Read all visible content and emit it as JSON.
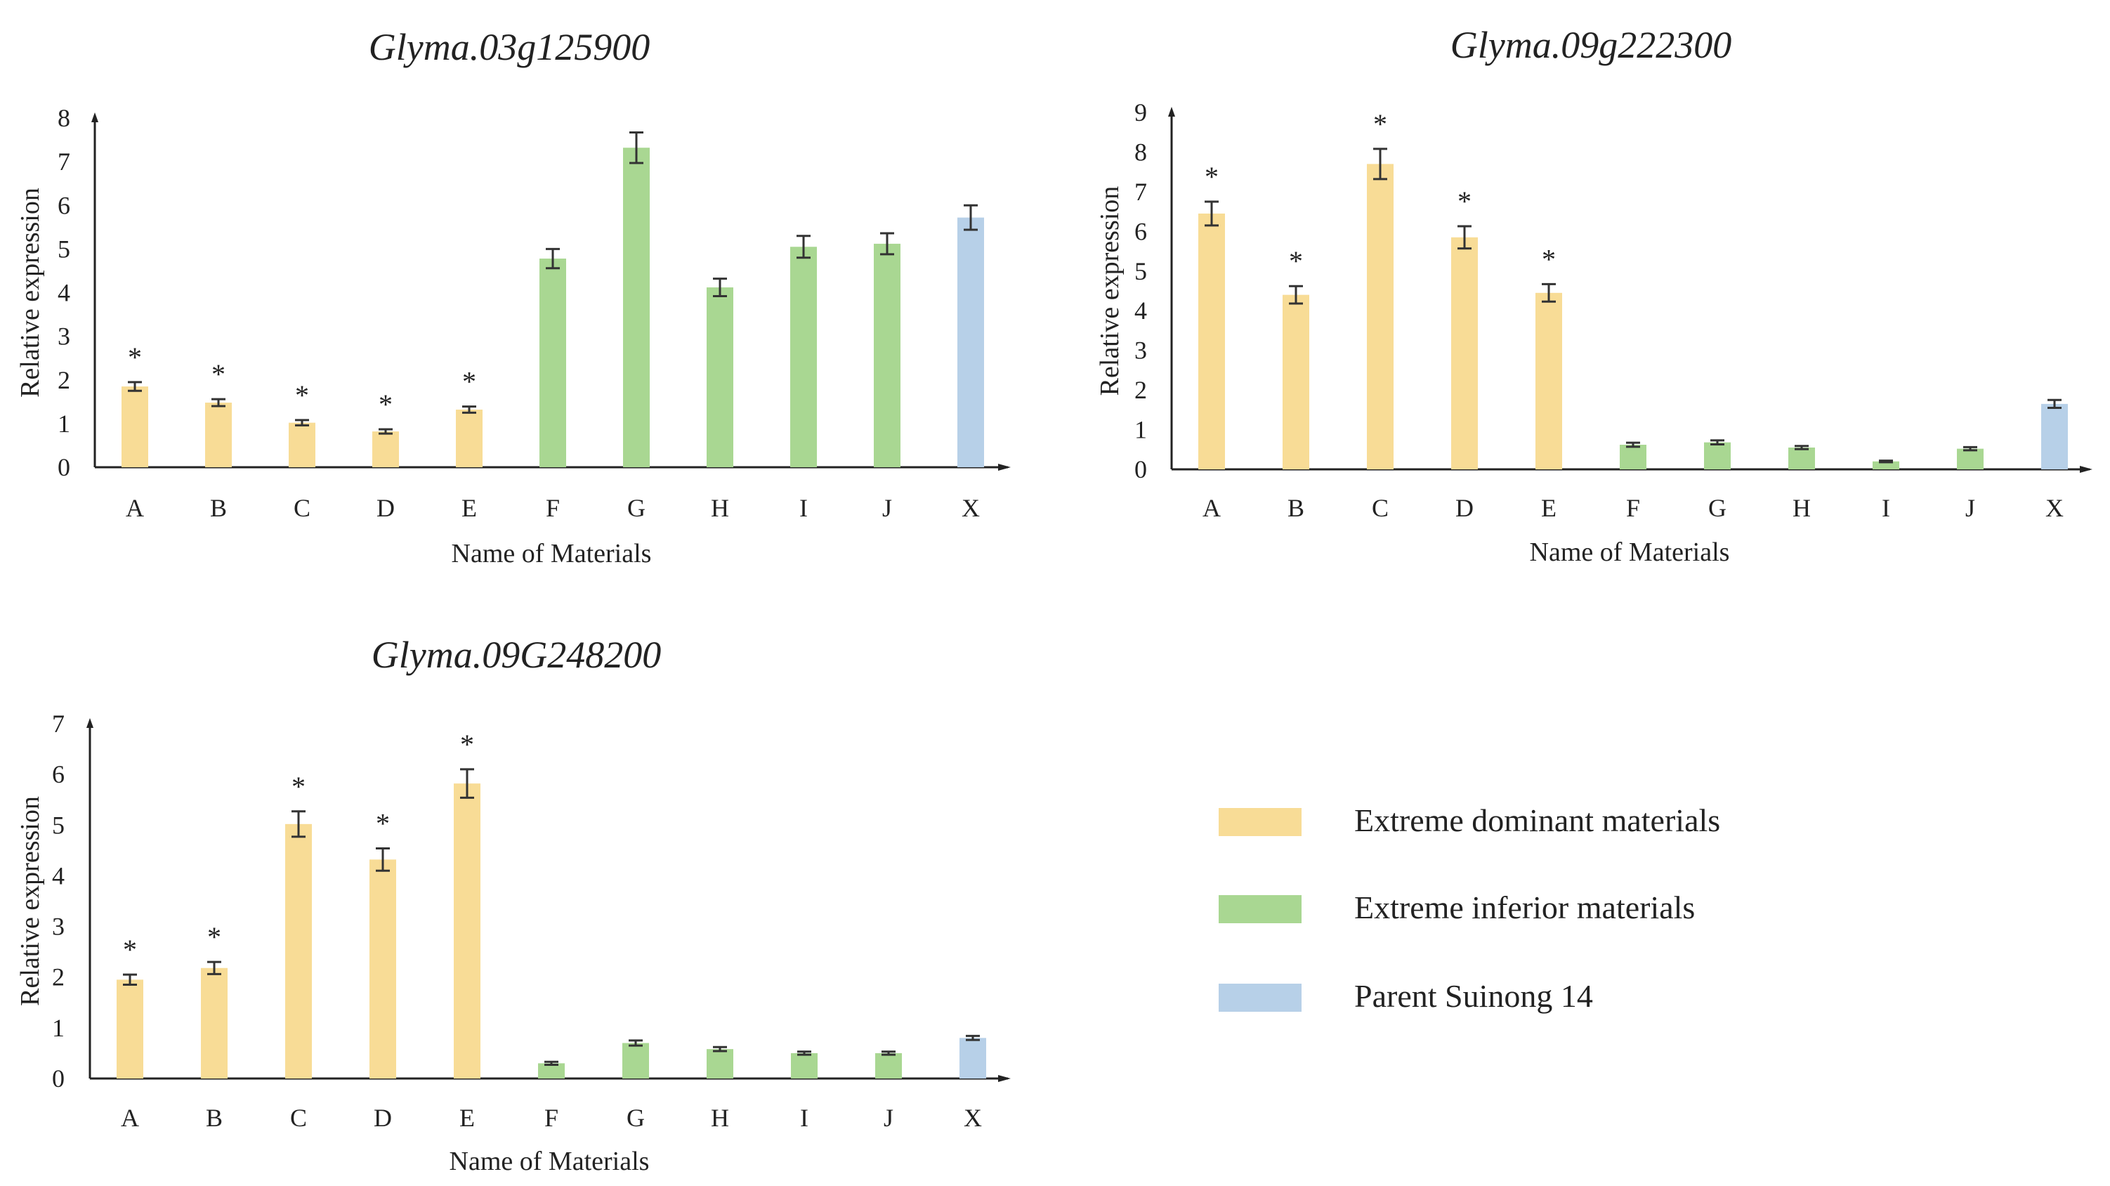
{
  "colors": {
    "dominant": "#f8dc96",
    "inferior": "#a9d792",
    "parent": "#b7d0e8",
    "axis": "#222222",
    "error_bar": "#333333"
  },
  "legend": [
    {
      "label": "Extreme dominant materials",
      "color": "#f8dc96"
    },
    {
      "label": "Extreme inferior materials",
      "color": "#a9d792"
    },
    {
      "label": "Parent Suinong 14",
      "color": "#b7d0e8"
    }
  ],
  "chart_data": [
    {
      "type": "bar",
      "title": "Glyma.03g125900",
      "xlabel": "Name of Materials",
      "ylabel": "Relative expression",
      "ylim": [
        0,
        8
      ],
      "yticks": [
        0,
        1,
        2,
        3,
        4,
        5,
        6,
        7,
        8
      ],
      "categories": [
        "A",
        "B",
        "C",
        "D",
        "E",
        "F",
        "G",
        "H",
        "I",
        "J",
        "X"
      ],
      "values": [
        1.85,
        1.48,
        1.02,
        0.82,
        1.32,
        4.78,
        7.32,
        4.12,
        5.05,
        5.12,
        5.72
      ],
      "errors": [
        0.1,
        0.08,
        0.06,
        0.05,
        0.07,
        0.22,
        0.35,
        0.2,
        0.25,
        0.24,
        0.28
      ],
      "groups": [
        "dominant",
        "dominant",
        "dominant",
        "dominant",
        "dominant",
        "inferior",
        "inferior",
        "inferior",
        "inferior",
        "inferior",
        "parent"
      ],
      "significance": [
        "*",
        "*",
        "*",
        "*",
        "*",
        "",
        "",
        "",
        "",
        "",
        ""
      ]
    },
    {
      "type": "bar",
      "title": "Glyma.09g222300",
      "xlabel": "Name of Materials",
      "ylabel": "Relative expression",
      "ylim": [
        0,
        9
      ],
      "yticks": [
        0,
        1,
        2,
        3,
        4,
        5,
        6,
        7,
        8,
        9
      ],
      "categories": [
        "A",
        "B",
        "C",
        "D",
        "E",
        "F",
        "G",
        "H",
        "I",
        "J",
        "X"
      ],
      "values": [
        6.45,
        4.4,
        7.7,
        5.85,
        4.45,
        0.62,
        0.68,
        0.55,
        0.2,
        0.52,
        1.65
      ],
      "errors": [
        0.3,
        0.22,
        0.38,
        0.28,
        0.22,
        0.05,
        0.05,
        0.04,
        0.02,
        0.04,
        0.1
      ],
      "groups": [
        "dominant",
        "dominant",
        "dominant",
        "dominant",
        "dominant",
        "inferior",
        "inferior",
        "inferior",
        "inferior",
        "inferior",
        "parent"
      ],
      "significance": [
        "*",
        "*",
        "*",
        "*",
        "*",
        "",
        "",
        "",
        "",
        "",
        ""
      ]
    },
    {
      "type": "bar",
      "title": "Glyma.09G248200",
      "xlabel": "Name of Materials",
      "ylabel": "Relative expression",
      "ylim": [
        0,
        7
      ],
      "yticks": [
        0,
        1,
        2,
        3,
        4,
        5,
        6,
        7
      ],
      "categories": [
        "A",
        "B",
        "C",
        "D",
        "E",
        "F",
        "G",
        "H",
        "I",
        "J",
        "X"
      ],
      "values": [
        1.95,
        2.18,
        5.02,
        4.32,
        5.82,
        0.3,
        0.7,
        0.58,
        0.5,
        0.5,
        0.8
      ],
      "errors": [
        0.1,
        0.12,
        0.25,
        0.22,
        0.28,
        0.03,
        0.05,
        0.04,
        0.03,
        0.03,
        0.04
      ],
      "groups": [
        "dominant",
        "dominant",
        "dominant",
        "dominant",
        "dominant",
        "inferior",
        "inferior",
        "inferior",
        "inferior",
        "inferior",
        "parent"
      ],
      "significance": [
        "*",
        "*",
        "*",
        "*",
        "*",
        "",
        "",
        "",
        "",
        "",
        ""
      ]
    }
  ]
}
